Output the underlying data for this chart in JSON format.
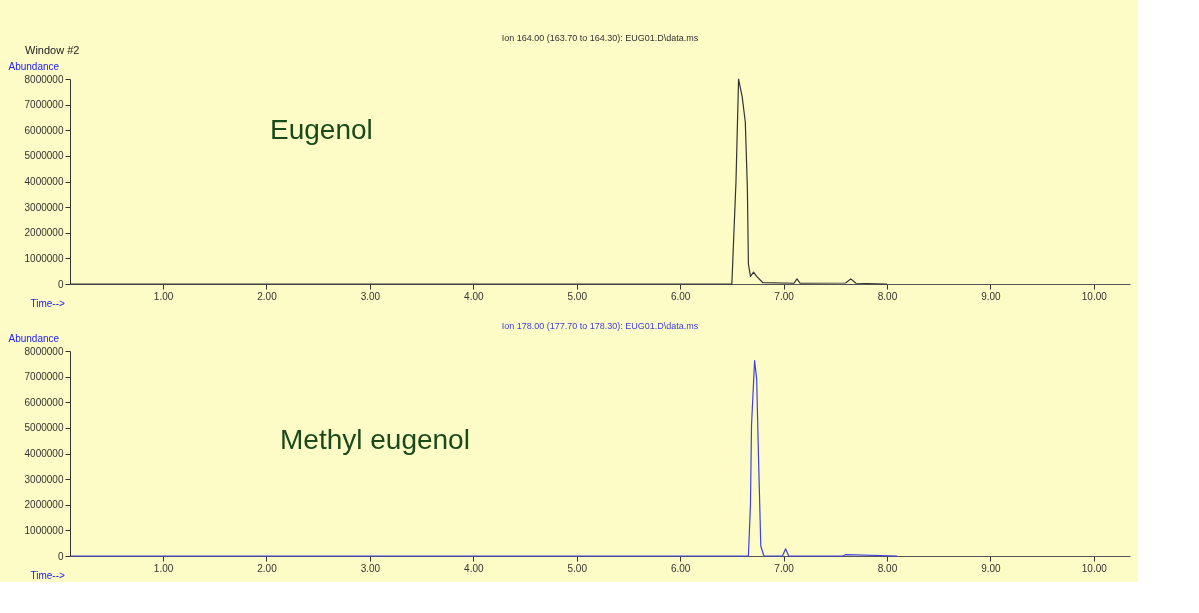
{
  "chart_data": [
    {
      "type": "line",
      "title": "Ion 164.00 (163.70 to 164.30): EUG01.D\\data.ms",
      "xlabel": "Time-->",
      "ylabel": "Abundance",
      "annotations": [
        "Window #2",
        "Eugenol"
      ],
      "series": [
        {
          "color": "#333333",
          "x": [
            0.11,
            6.5,
            6.54,
            6.565,
            6.6,
            6.63,
            6.65,
            6.66,
            6.68,
            6.71,
            6.74,
            6.8,
            7.1,
            7.13,
            7.16,
            7.6,
            7.65,
            7.7,
            8.0
          ],
          "values": [
            0,
            0,
            4000000,
            8000000,
            7300000,
            6320000,
            3740000,
            780000,
            300000,
            460000,
            300000,
            50000,
            30000,
            200000,
            30000,
            40000,
            200000,
            30000,
            0
          ]
        }
      ],
      "xlim": [
        0.1,
        10.35
      ],
      "ylim": [
        0,
        8000000
      ],
      "xticks": [
        {
          "value": 1,
          "label": "1.00"
        },
        {
          "value": 2,
          "label": "2.00"
        },
        {
          "value": 3,
          "label": "3.00"
        },
        {
          "value": 4,
          "label": "4.00"
        },
        {
          "value": 5,
          "label": "5.00"
        },
        {
          "value": 6,
          "label": "6.00"
        },
        {
          "value": 7,
          "label": "7.00"
        },
        {
          "value": 8,
          "label": "8.00"
        },
        {
          "value": 9,
          "label": "9.00"
        },
        {
          "value": 10,
          "label": "10.00"
        }
      ],
      "yticks": [
        0,
        1000000,
        2000000,
        3000000,
        4000000,
        5000000,
        6000000,
        7000000,
        8000000
      ],
      "grid": false
    },
    {
      "type": "line",
      "title": "Ion 178.00 (177.70 to 178.30): EUG01.D\\data.ms",
      "xlabel": "Time-->",
      "ylabel": "Abundance",
      "annotations": [
        "Methyl eugenol"
      ],
      "series": [
        {
          "color": "#4040e0",
          "x": [
            0.11,
            6.66,
            6.68,
            6.69,
            6.72,
            6.74,
            6.76,
            6.78,
            6.81,
            6.99,
            7.02,
            7.05,
            7.57,
            7.6,
            8.1
          ],
          "values": [
            0,
            0,
            2000000,
            5080000,
            7630000,
            6900000,
            3480000,
            390000,
            0,
            0,
            280000,
            0,
            0,
            50000,
            0
          ]
        }
      ],
      "xlim": [
        0.1,
        10.35
      ],
      "ylim": [
        0,
        8000000
      ],
      "xticks": [
        {
          "value": 1,
          "label": "1.00"
        },
        {
          "value": 2,
          "label": "2.00"
        },
        {
          "value": 3,
          "label": "3.00"
        },
        {
          "value": 4,
          "label": "4.00"
        },
        {
          "value": 5,
          "label": "5.00"
        },
        {
          "value": 6,
          "label": "6.00"
        },
        {
          "value": 7,
          "label": "7.00"
        },
        {
          "value": 8,
          "label": "8.00"
        },
        {
          "value": 9,
          "label": "9.00"
        },
        {
          "value": 10,
          "label": "10.00"
        }
      ],
      "yticks": [
        0,
        1000000,
        2000000,
        3000000,
        4000000,
        5000000,
        6000000,
        7000000,
        8000000
      ],
      "grid": false
    }
  ]
}
